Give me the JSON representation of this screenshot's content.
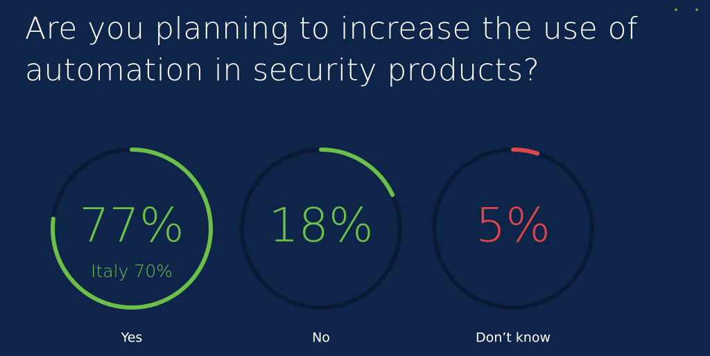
{
  "chart_data": {
    "type": "gauge",
    "title": "Are you planning to increase the use of automation in security products?",
    "categories": [
      "Yes",
      "No",
      "Don’t know"
    ],
    "values": [
      77,
      18,
      5
    ],
    "value_labels": [
      "77%",
      "18%",
      "5%"
    ],
    "colors": [
      "#6cc04a",
      "#6cc04a",
      "#e0474c"
    ],
    "annotations": [
      "Italy 70%"
    ]
  }
}
